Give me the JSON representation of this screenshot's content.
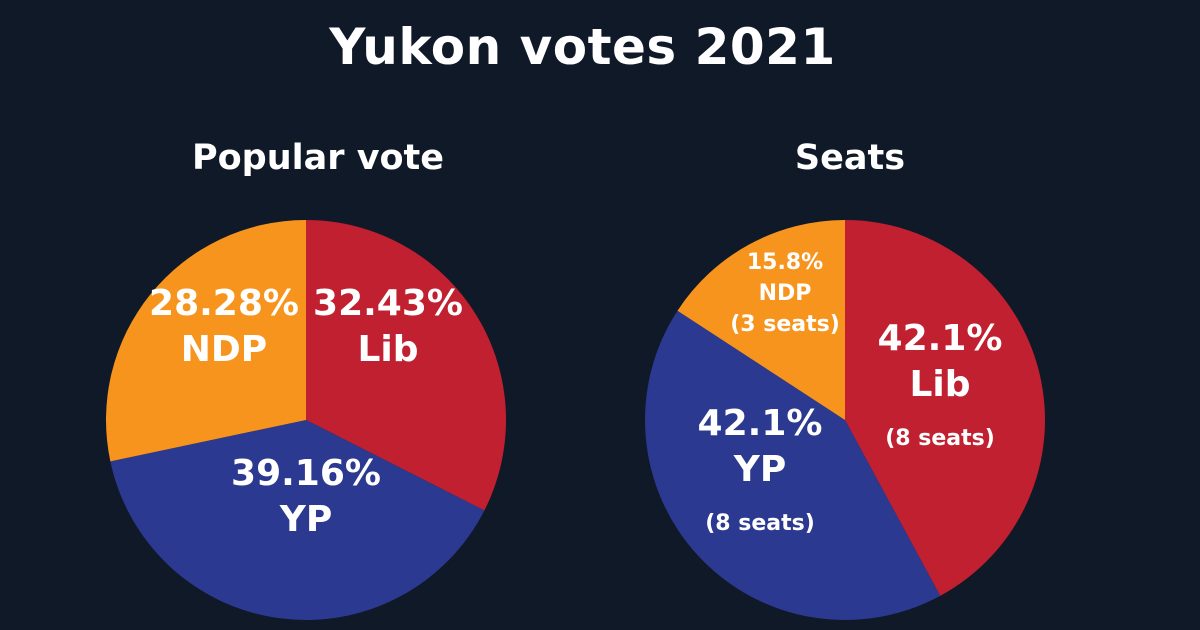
{
  "title": "Yukon votes 2021",
  "chart_data": [
    {
      "type": "pie",
      "title": "Popular vote",
      "slices": [
        {
          "party": "Lib",
          "value": 32.43,
          "label": "32.43%",
          "color": "#c02030"
        },
        {
          "party": "YP",
          "value": 39.16,
          "label": "39.16%",
          "color": "#2b3990"
        },
        {
          "party": "NDP",
          "value": 28.28,
          "label": "28.28%",
          "color": "#f7941d"
        }
      ]
    },
    {
      "type": "pie",
      "title": "Seats",
      "slices": [
        {
          "party": "Lib",
          "value": 42.1,
          "label": "42.1%",
          "seats": "(8 seats)",
          "color": "#c02030"
        },
        {
          "party": "YP",
          "value": 42.1,
          "label": "42.1%",
          "seats": "(8 seats)",
          "color": "#2b3990"
        },
        {
          "party": "NDP",
          "value": 15.8,
          "label": "15.8%",
          "seats": "(3 seats)",
          "color": "#f7941d"
        }
      ]
    }
  ]
}
